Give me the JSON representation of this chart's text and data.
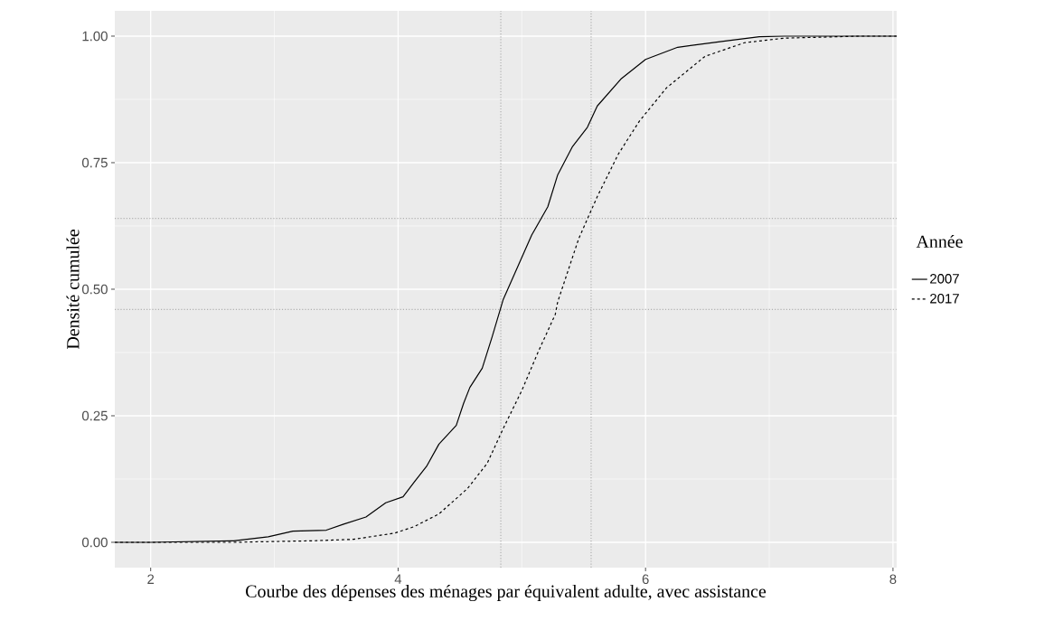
{
  "chart_data": {
    "type": "line",
    "xlabel": "Courbe des dépenses des ménages par équivalent adulte, avec assistance",
    "ylabel": "Densité cumulée",
    "legend_title": "Année",
    "xlim": [
      1.71,
      8.03
    ],
    "ylim": [
      -0.05,
      1.05
    ],
    "xticks": [
      2,
      4,
      6,
      8
    ],
    "yticks": [
      {
        "value": 0,
        "label": "0.00"
      },
      {
        "value": 0.25,
        "label": "0.25"
      },
      {
        "value": 0.5,
        "label": "0.50"
      },
      {
        "value": 0.75,
        "label": "0.75"
      },
      {
        "value": 1,
        "label": "1.00"
      }
    ],
    "grid": true,
    "legend": "right",
    "marker": "none",
    "ref_lines": [
      {
        "axis": "x",
        "value": 4.83,
        "color": "#b0b0b0",
        "line_style": "dotted"
      },
      {
        "axis": "x",
        "value": 5.56,
        "color": "#b0b0b0",
        "line_style": "dotted"
      },
      {
        "axis": "y",
        "value": 0.46,
        "color": "#b0b0b0",
        "line_style": "dotted"
      },
      {
        "axis": "y",
        "value": 0.64,
        "color": "#b0b0b0",
        "line_style": "dotted"
      }
    ],
    "series": [
      {
        "name": "2007",
        "color": "#000000",
        "line_style": "solid",
        "x": [
          1.71,
          2.0,
          2.67,
          2.95,
          3.15,
          3.42,
          3.56,
          3.74,
          3.9,
          4.04,
          4.13,
          4.23,
          4.33,
          4.47,
          4.53,
          4.58,
          4.68,
          4.76,
          4.85,
          5.08,
          5.21,
          5.29,
          5.41,
          5.53,
          5.61,
          5.8,
          6.0,
          6.26,
          6.63,
          6.92,
          7.12,
          8.03
        ],
        "values": [
          0,
          0,
          0.003,
          0.011,
          0.022,
          0.024,
          0.036,
          0.05,
          0.078,
          0.09,
          0.119,
          0.15,
          0.194,
          0.231,
          0.275,
          0.306,
          0.344,
          0.406,
          0.48,
          0.607,
          0.663,
          0.726,
          0.782,
          0.82,
          0.862,
          0.915,
          0.954,
          0.978,
          0.99,
          0.999,
          1.0,
          1.0
        ]
      },
      {
        "name": "2017",
        "color": "#000000",
        "line_style": "dashed",
        "x": [
          1.71,
          2.67,
          3.31,
          3.64,
          3.97,
          4.13,
          4.33,
          4.56,
          4.72,
          4.85,
          5.0,
          5.13,
          5.27,
          5.29,
          5.46,
          5.61,
          5.78,
          5.95,
          6.17,
          6.48,
          6.8,
          7.12,
          7.73,
          8.03
        ],
        "values": [
          0,
          0,
          0.003,
          0.006,
          0.018,
          0.031,
          0.056,
          0.106,
          0.156,
          0.225,
          0.3,
          0.375,
          0.45,
          0.475,
          0.6,
          0.683,
          0.767,
          0.832,
          0.898,
          0.96,
          0.987,
          0.996,
          1.0,
          1.0
        ]
      }
    ]
  }
}
